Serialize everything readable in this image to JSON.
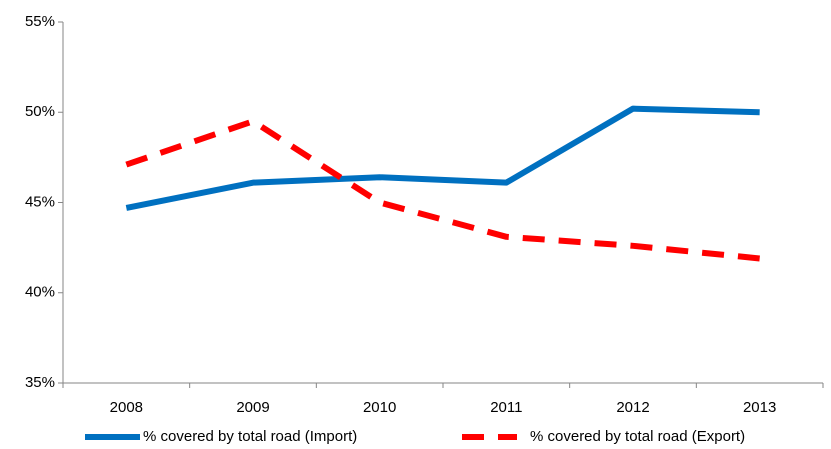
{
  "chart_data": {
    "type": "line",
    "categories": [
      "2008",
      "2009",
      "2010",
      "2011",
      "2012",
      "2013"
    ],
    "series": [
      {
        "name": "% covered by total road (Import)",
        "color": "#0070c0",
        "dashed": false,
        "values": [
          44.7,
          46.1,
          46.4,
          46.1,
          50.2,
          50.0
        ]
      },
      {
        "name": "% covered by total road (Export)",
        "color": "#ff0000",
        "dashed": true,
        "values": [
          47.1,
          49.5,
          45.0,
          43.1,
          42.6,
          41.9
        ]
      }
    ],
    "ylim": [
      35,
      55
    ],
    "yticks": [
      {
        "value": 35,
        "label": "35%"
      },
      {
        "value": 40,
        "label": "40%"
      },
      {
        "value": 45,
        "label": "45%"
      },
      {
        "value": 50,
        "label": "50%"
      },
      {
        "value": 55,
        "label": "55%"
      }
    ],
    "grid": false,
    "legend": "bottom"
  }
}
